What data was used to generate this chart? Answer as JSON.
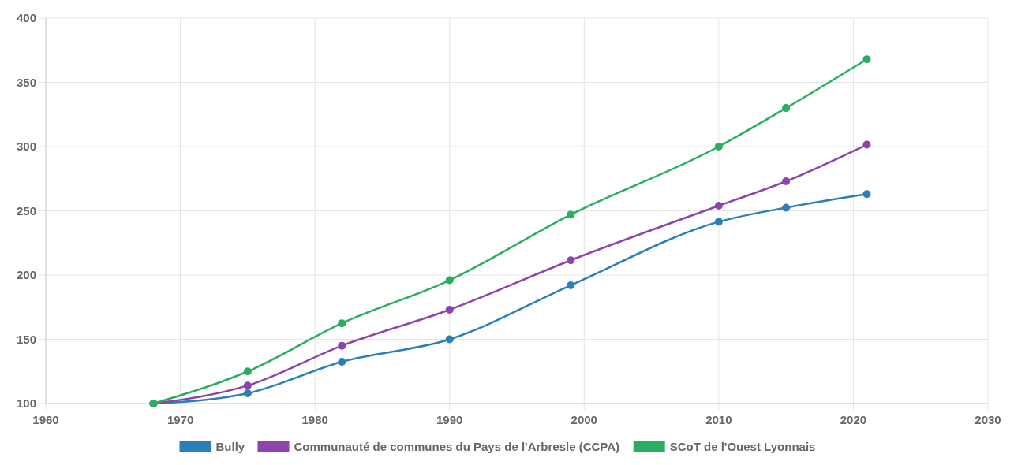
{
  "chart_data": {
    "type": "line",
    "x": [
      1968,
      1975,
      1982,
      1990,
      1999,
      2010,
      2015,
      2021
    ],
    "series": [
      {
        "name": "Bully",
        "color": "#2980b9",
        "values": [
          100,
          108,
          132.5,
          150,
          192,
          241.5,
          252.5,
          263
        ]
      },
      {
        "name": "Communauté de communes du Pays de l'Arbresle (CCPA)",
        "color": "#8e44ad",
        "values": [
          100,
          114,
          145,
          173,
          211.5,
          254,
          273,
          301.5
        ]
      },
      {
        "name": "SCoT de l'Ouest Lyonnais",
        "color": "#27ae60",
        "values": [
          100,
          125,
          162.5,
          196,
          247,
          300,
          330,
          368
        ]
      }
    ],
    "xlim": [
      1960,
      2030
    ],
    "xticks": [
      1960,
      1970,
      1980,
      1990,
      2000,
      2010,
      2020,
      2030
    ],
    "ylim": [
      100,
      400
    ],
    "yticks": [
      100,
      150,
      200,
      250,
      300,
      350,
      400
    ],
    "grid": true,
    "legend": "bottom",
    "marker": "circle",
    "line_style": "solid"
  }
}
